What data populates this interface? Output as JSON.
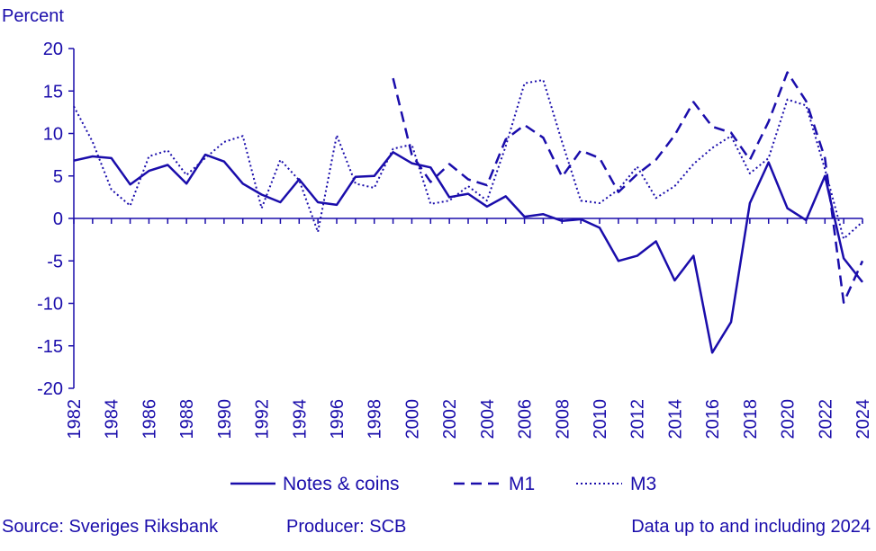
{
  "chart_data": {
    "type": "line",
    "ylabel": "Percent",
    "ylim": [
      -20,
      20
    ],
    "yticks": [
      20,
      15,
      10,
      5,
      0,
      -5,
      -10,
      -15,
      -20
    ],
    "xlim": [
      1982,
      2024
    ],
    "xticks": [
      "1982",
      "1984",
      "1986",
      "1988",
      "1990",
      "1992",
      "1994",
      "1996",
      "1998",
      "2000",
      "2002",
      "2004",
      "2006",
      "2008",
      "2010",
      "2012",
      "2014",
      "2016",
      "2018",
      "2020",
      "2022",
      "2024"
    ],
    "grid": false,
    "legend_position": "bottom",
    "color": "#1a0dab",
    "series": [
      {
        "name": "Notes & coins",
        "style": "solid",
        "x": [
          1982,
          1983,
          1984,
          1985,
          1986,
          1987,
          1988,
          1989,
          1990,
          1991,
          1992,
          1993,
          1994,
          1995,
          1996,
          1997,
          1998,
          1999,
          2000,
          2001,
          2002,
          2003,
          2004,
          2005,
          2006,
          2007,
          2008,
          2009,
          2010,
          2011,
          2012,
          2013,
          2014,
          2015,
          2016,
          2017,
          2018,
          2019,
          2020,
          2021,
          2022,
          2023,
          2024
        ],
        "values": [
          6.8,
          7.3,
          7.1,
          4.0,
          5.6,
          6.3,
          4.1,
          7.5,
          6.7,
          4.1,
          2.8,
          1.9,
          4.6,
          1.9,
          1.6,
          4.9,
          5.0,
          7.8,
          6.5,
          6.0,
          2.5,
          2.9,
          1.4,
          2.6,
          0.2,
          0.5,
          -0.3,
          -0.1,
          -1.1,
          -5.0,
          -4.4,
          -2.7,
          -7.3,
          -4.4,
          -15.8,
          -12.2,
          1.8,
          6.6,
          1.2,
          -0.2,
          5.0,
          -4.7,
          -7.5
        ]
      },
      {
        "name": "M1",
        "style": "dashed",
        "x": [
          1999,
          2000,
          2001,
          2002,
          2003,
          2004,
          2005,
          2006,
          2007,
          2008,
          2009,
          2010,
          2011,
          2012,
          2013,
          2014,
          2015,
          2016,
          2017,
          2018,
          2019,
          2020,
          2021,
          2022,
          2023,
          2024
        ],
        "values": [
          16.5,
          7.5,
          4.3,
          6.4,
          4.6,
          3.9,
          9.3,
          11.0,
          9.5,
          4.9,
          8.0,
          7.1,
          3.1,
          5.2,
          6.9,
          9.8,
          13.7,
          10.8,
          10.1,
          6.9,
          11.4,
          17.2,
          13.8,
          7.1,
          -9.9,
          -5.0
        ]
      },
      {
        "name": "M3",
        "style": "dotted",
        "x": [
          1982,
          1983,
          1984,
          1985,
          1986,
          1987,
          1988,
          1989,
          1990,
          1991,
          1992,
          1993,
          1994,
          1995,
          1996,
          1997,
          1998,
          1999,
          2000,
          2001,
          2002,
          2003,
          2004,
          2005,
          2006,
          2007,
          2008,
          2009,
          2010,
          2011,
          2012,
          2013,
          2014,
          2015,
          2016,
          2017,
          2018,
          2019,
          2020,
          2021,
          2022,
          2023,
          2024
        ],
        "values": [
          13.2,
          9.0,
          3.4,
          1.5,
          7.3,
          8.0,
          5.1,
          7.1,
          9.0,
          9.7,
          1.2,
          6.9,
          4.5,
          -1.6,
          9.8,
          4.1,
          3.6,
          8.2,
          8.7,
          1.7,
          2.1,
          3.8,
          2.1,
          8.5,
          15.9,
          16.3,
          9.0,
          2.1,
          1.8,
          3.4,
          6.1,
          2.4,
          3.8,
          6.4,
          8.3,
          9.7,
          5.3,
          7.1,
          14.0,
          13.3,
          5.8,
          -2.4,
          -0.4
        ]
      }
    ]
  },
  "footer": {
    "source": "Source: Sveriges Riksbank",
    "producer": "Producer: SCB",
    "data_note": "Data up to and including 2024"
  }
}
